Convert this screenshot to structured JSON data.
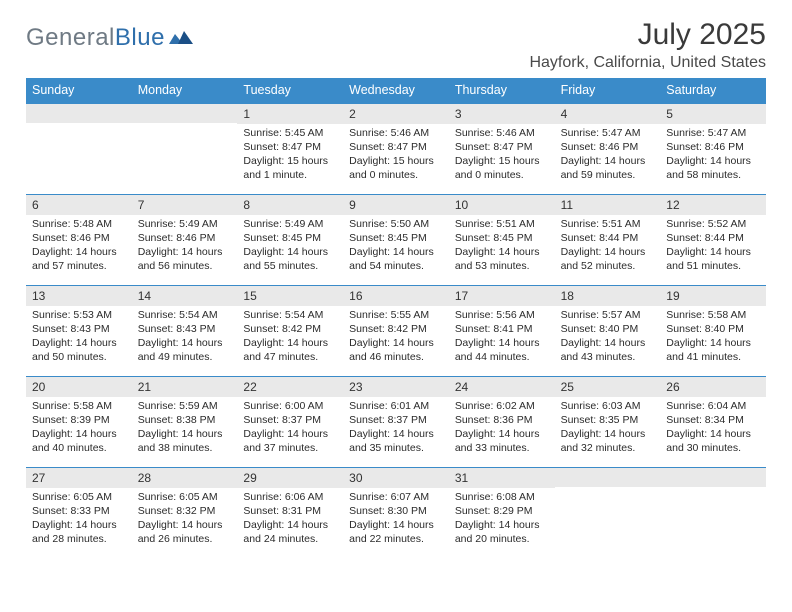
{
  "logo": {
    "part1": "General",
    "part2": "Blue"
  },
  "title": "July 2025",
  "location": "Hayfork, California, United States",
  "colors": {
    "header_bg": "#3a8bc9",
    "header_text": "#ffffff",
    "daynum_bg": "#e9e9e9",
    "rule": "#3a8bc9",
    "body_text": "#2b2b2b",
    "logo_gray": "#6f7a84",
    "logo_blue": "#2f6fab",
    "page_bg": "#ffffff"
  },
  "weekdays": [
    "Sunday",
    "Monday",
    "Tuesday",
    "Wednesday",
    "Thursday",
    "Friday",
    "Saturday"
  ],
  "weeks": [
    [
      null,
      null,
      {
        "n": "1",
        "sr": "5:45 AM",
        "ss": "8:47 PM",
        "dl": "15 hours and 1 minute."
      },
      {
        "n": "2",
        "sr": "5:46 AM",
        "ss": "8:47 PM",
        "dl": "15 hours and 0 minutes."
      },
      {
        "n": "3",
        "sr": "5:46 AM",
        "ss": "8:47 PM",
        "dl": "15 hours and 0 minutes."
      },
      {
        "n": "4",
        "sr": "5:47 AM",
        "ss": "8:46 PM",
        "dl": "14 hours and 59 minutes."
      },
      {
        "n": "5",
        "sr": "5:47 AM",
        "ss": "8:46 PM",
        "dl": "14 hours and 58 minutes."
      }
    ],
    [
      {
        "n": "6",
        "sr": "5:48 AM",
        "ss": "8:46 PM",
        "dl": "14 hours and 57 minutes."
      },
      {
        "n": "7",
        "sr": "5:49 AM",
        "ss": "8:46 PM",
        "dl": "14 hours and 56 minutes."
      },
      {
        "n": "8",
        "sr": "5:49 AM",
        "ss": "8:45 PM",
        "dl": "14 hours and 55 minutes."
      },
      {
        "n": "9",
        "sr": "5:50 AM",
        "ss": "8:45 PM",
        "dl": "14 hours and 54 minutes."
      },
      {
        "n": "10",
        "sr": "5:51 AM",
        "ss": "8:45 PM",
        "dl": "14 hours and 53 minutes."
      },
      {
        "n": "11",
        "sr": "5:51 AM",
        "ss": "8:44 PM",
        "dl": "14 hours and 52 minutes."
      },
      {
        "n": "12",
        "sr": "5:52 AM",
        "ss": "8:44 PM",
        "dl": "14 hours and 51 minutes."
      }
    ],
    [
      {
        "n": "13",
        "sr": "5:53 AM",
        "ss": "8:43 PM",
        "dl": "14 hours and 50 minutes."
      },
      {
        "n": "14",
        "sr": "5:54 AM",
        "ss": "8:43 PM",
        "dl": "14 hours and 49 minutes."
      },
      {
        "n": "15",
        "sr": "5:54 AM",
        "ss": "8:42 PM",
        "dl": "14 hours and 47 minutes."
      },
      {
        "n": "16",
        "sr": "5:55 AM",
        "ss": "8:42 PM",
        "dl": "14 hours and 46 minutes."
      },
      {
        "n": "17",
        "sr": "5:56 AM",
        "ss": "8:41 PM",
        "dl": "14 hours and 44 minutes."
      },
      {
        "n": "18",
        "sr": "5:57 AM",
        "ss": "8:40 PM",
        "dl": "14 hours and 43 minutes."
      },
      {
        "n": "19",
        "sr": "5:58 AM",
        "ss": "8:40 PM",
        "dl": "14 hours and 41 minutes."
      }
    ],
    [
      {
        "n": "20",
        "sr": "5:58 AM",
        "ss": "8:39 PM",
        "dl": "14 hours and 40 minutes."
      },
      {
        "n": "21",
        "sr": "5:59 AM",
        "ss": "8:38 PM",
        "dl": "14 hours and 38 minutes."
      },
      {
        "n": "22",
        "sr": "6:00 AM",
        "ss": "8:37 PM",
        "dl": "14 hours and 37 minutes."
      },
      {
        "n": "23",
        "sr": "6:01 AM",
        "ss": "8:37 PM",
        "dl": "14 hours and 35 minutes."
      },
      {
        "n": "24",
        "sr": "6:02 AM",
        "ss": "8:36 PM",
        "dl": "14 hours and 33 minutes."
      },
      {
        "n": "25",
        "sr": "6:03 AM",
        "ss": "8:35 PM",
        "dl": "14 hours and 32 minutes."
      },
      {
        "n": "26",
        "sr": "6:04 AM",
        "ss": "8:34 PM",
        "dl": "14 hours and 30 minutes."
      }
    ],
    [
      {
        "n": "27",
        "sr": "6:05 AM",
        "ss": "8:33 PM",
        "dl": "14 hours and 28 minutes."
      },
      {
        "n": "28",
        "sr": "6:05 AM",
        "ss": "8:32 PM",
        "dl": "14 hours and 26 minutes."
      },
      {
        "n": "29",
        "sr": "6:06 AM",
        "ss": "8:31 PM",
        "dl": "14 hours and 24 minutes."
      },
      {
        "n": "30",
        "sr": "6:07 AM",
        "ss": "8:30 PM",
        "dl": "14 hours and 22 minutes."
      },
      {
        "n": "31",
        "sr": "6:08 AM",
        "ss": "8:29 PM",
        "dl": "14 hours and 20 minutes."
      },
      null,
      null
    ]
  ],
  "labels": {
    "sunrise": "Sunrise:",
    "sunset": "Sunset:",
    "daylight": "Daylight:"
  }
}
